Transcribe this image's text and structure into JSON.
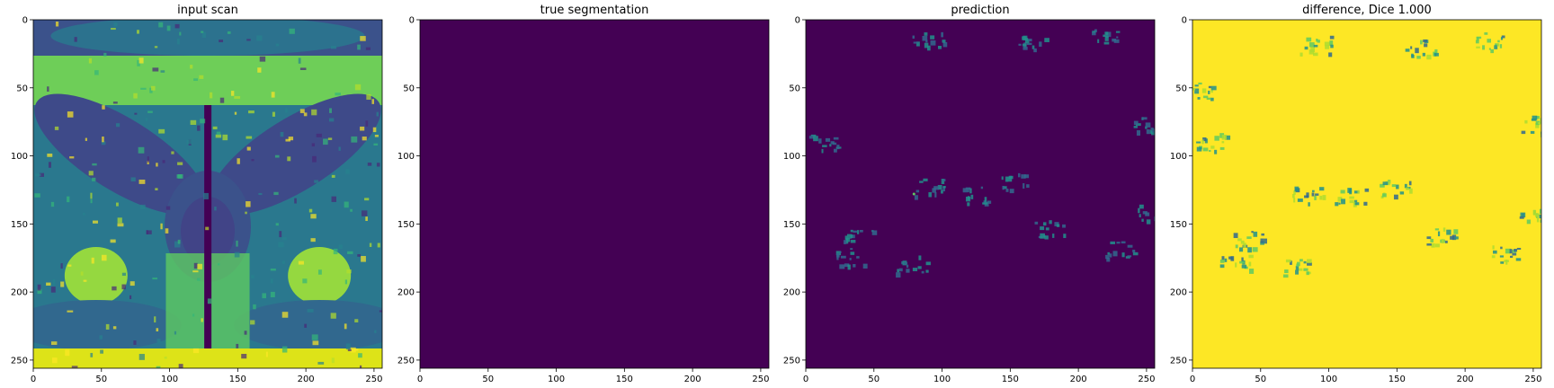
{
  "chart_data": [
    {
      "type": "heatmap",
      "title": "input scan",
      "xlabel": "",
      "ylabel": "",
      "xlim": [
        0,
        256
      ],
      "ylim": [
        256,
        0
      ],
      "xticks": [
        0,
        50,
        100,
        150,
        200,
        250
      ],
      "yticks": [
        0,
        50,
        100,
        150,
        200,
        250
      ],
      "colormap": "viridis",
      "content": "MRI pelvis axial slice"
    },
    {
      "type": "heatmap",
      "title": "true segmentation",
      "xlabel": "",
      "ylabel": "",
      "xlim": [
        0,
        256
      ],
      "ylim": [
        256,
        0
      ],
      "xticks": [
        0,
        50,
        100,
        150,
        200,
        250
      ],
      "yticks": [
        0,
        50,
        100,
        150,
        200,
        250
      ],
      "colormap": "viridis",
      "uniform_value": 0
    },
    {
      "type": "heatmap",
      "title": "prediction",
      "xlabel": "",
      "ylabel": "",
      "xlim": [
        0,
        256
      ],
      "ylim": [
        256,
        0
      ],
      "xticks": [
        0,
        50,
        100,
        150,
        200,
        250
      ],
      "yticks": [
        0,
        50,
        100,
        150,
        200,
        250
      ],
      "colormap": "viridis"
    },
    {
      "type": "heatmap",
      "title": "difference, Dice 1.000",
      "xlabel": "",
      "ylabel": "",
      "xlim": [
        0,
        256
      ],
      "ylim": [
        256,
        0
      ],
      "xticks": [
        0,
        50,
        100,
        150,
        200,
        250
      ],
      "yticks": [
        0,
        50,
        100,
        150,
        200,
        250
      ],
      "colormap": "viridis"
    }
  ],
  "colors": {
    "viridis_dark": "#440154",
    "viridis_blue": "#31688e",
    "viridis_teal": "#21918c",
    "viridis_green": "#5ec962",
    "viridis_yellow": "#fde725"
  }
}
